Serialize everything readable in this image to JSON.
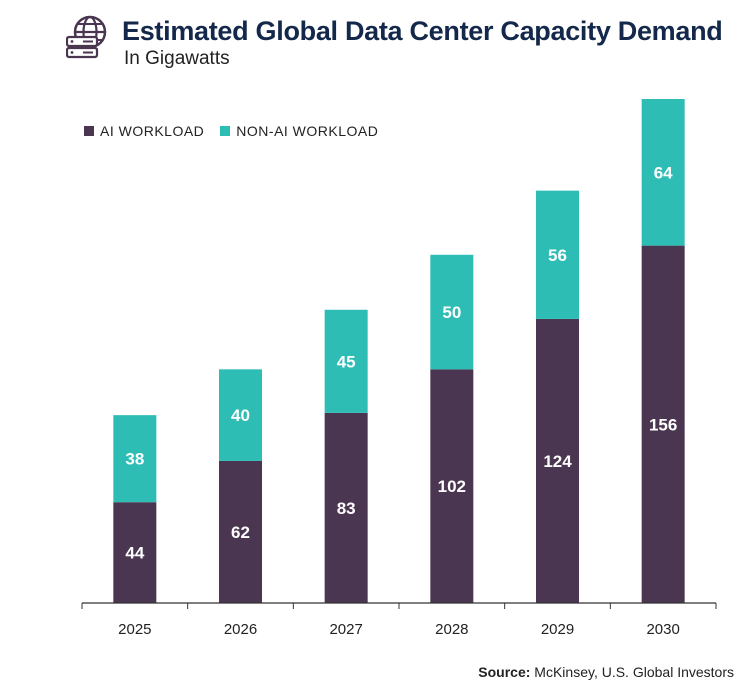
{
  "header": {
    "title": "Estimated Global Data Center Capacity Demand",
    "subtitle": "In Gigawatts"
  },
  "source": {
    "label": "Source:",
    "text": "McKinsey, U.S. Global Investors"
  },
  "colors": {
    "ai": "#4a3650",
    "non_ai": "#2ebdb5",
    "title": "#13284a"
  },
  "logo_icon": "server-globe-icon",
  "chart_data": {
    "type": "bar",
    "stacked": true,
    "categories": [
      "2025",
      "2026",
      "2027",
      "2028",
      "2029",
      "2030"
    ],
    "series": [
      {
        "name": "AI WORKLOAD",
        "values": [
          44,
          62,
          83,
          102,
          124,
          156
        ],
        "color": "#4a3650"
      },
      {
        "name": "NON-AI WORKLOAD",
        "values": [
          38,
          40,
          45,
          50,
          56,
          64
        ],
        "color": "#2ebdb5"
      }
    ],
    "ylim": [
      0,
      220
    ],
    "grid": false,
    "legend_position": "top-left",
    "data_labels": true
  }
}
